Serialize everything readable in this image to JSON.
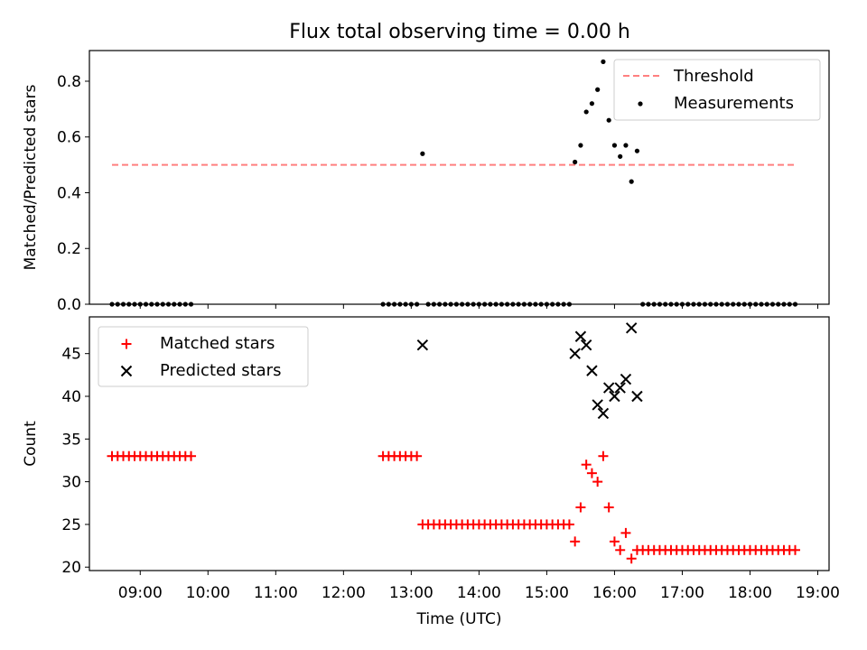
{
  "figure_title": "Flux total observing time = 0.00 h",
  "colors": {
    "threshold": "#ff7f7f",
    "measurements": "#000000",
    "matched": "#ff0000",
    "predicted": "#000000"
  },
  "chart_data": [
    {
      "type": "scatter",
      "title": "Flux total observing time = 0.00 h",
      "xlabel": "",
      "ylabel": "Matched/Predicted stars",
      "xlim": [
        "08:15",
        "19:10"
      ],
      "ylim": [
        0,
        0.91
      ],
      "yticks": [
        0.0,
        0.2,
        0.4,
        0.6,
        0.8
      ],
      "ytick_labels": [
        "0.0",
        "0.2",
        "0.4",
        "0.6",
        "0.8"
      ],
      "grid": false,
      "legend": "top-right",
      "series": [
        {
          "name": "Threshold",
          "style": "dashed-line",
          "x": [
            "08:35",
            "18:40"
          ],
          "y": [
            0.5,
            0.5
          ]
        },
        {
          "name": "Measurements",
          "style": "dot",
          "x": [
            "08:35",
            "08:40",
            "08:45",
            "08:50",
            "08:55",
            "09:00",
            "09:05",
            "09:10",
            "09:15",
            "09:20",
            "09:25",
            "09:30",
            "09:35",
            "09:40",
            "09:45",
            "12:35",
            "12:40",
            "12:45",
            "12:50",
            "12:55",
            "13:00",
            "13:05",
            "13:10",
            "13:15",
            "13:20",
            "13:25",
            "13:30",
            "13:35",
            "13:40",
            "13:45",
            "13:50",
            "13:55",
            "14:00",
            "14:05",
            "14:10",
            "14:15",
            "14:20",
            "14:25",
            "14:30",
            "14:35",
            "14:40",
            "14:45",
            "14:50",
            "14:55",
            "15:00",
            "15:05",
            "15:10",
            "15:15",
            "15:20",
            "15:25",
            "15:30",
            "15:35",
            "15:40",
            "15:45",
            "15:50",
            "15:55",
            "16:00",
            "16:05",
            "16:10",
            "16:15",
            "16:20",
            "16:25",
            "16:30",
            "16:35",
            "16:40",
            "16:45",
            "16:50",
            "16:55",
            "17:00",
            "17:05",
            "17:10",
            "17:15",
            "17:20",
            "17:25",
            "17:30",
            "17:35",
            "17:40",
            "17:45",
            "17:50",
            "17:55",
            "18:00",
            "18:05",
            "18:10",
            "18:15",
            "18:20",
            "18:25",
            "18:30",
            "18:35",
            "18:40"
          ],
          "y": [
            0,
            0,
            0,
            0,
            0,
            0,
            0,
            0,
            0,
            0,
            0,
            0,
            0,
            0,
            0,
            0,
            0,
            0,
            0,
            0,
            0,
            0,
            0.54,
            0,
            0,
            0,
            0,
            0,
            0,
            0,
            0,
            0,
            0,
            0,
            0,
            0,
            0,
            0,
            0,
            0,
            0,
            0,
            0,
            0,
            0,
            0,
            0,
            0,
            0,
            0.51,
            0.57,
            0.69,
            0.72,
            0.77,
            0.87,
            0.66,
            0.57,
            0.53,
            0.57,
            0.44,
            0.55,
            0,
            0,
            0,
            0,
            0,
            0,
            0,
            0,
            0,
            0,
            0,
            0,
            0,
            0,
            0,
            0,
            0,
            0,
            0,
            0,
            0,
            0,
            0,
            0,
            0,
            0,
            0,
            0
          ]
        }
      ]
    },
    {
      "type": "scatter",
      "xlabel": "Time (UTC)",
      "ylabel": "Count",
      "xlim": [
        "08:15",
        "19:10"
      ],
      "ylim": [
        19.6,
        49.3
      ],
      "yticks": [
        20,
        25,
        30,
        35,
        40,
        45
      ],
      "ytick_labels": [
        "20",
        "25",
        "30",
        "35",
        "40",
        "45"
      ],
      "xticks": [
        "09:00",
        "10:00",
        "11:00",
        "12:00",
        "13:00",
        "14:00",
        "15:00",
        "16:00",
        "17:00",
        "18:00",
        "19:00"
      ],
      "xtick_labels": [
        "09:00",
        "10:00",
        "11:00",
        "12:00",
        "13:00",
        "14:00",
        "15:00",
        "16:00",
        "17:00",
        "18:00",
        "19:00"
      ],
      "grid": false,
      "legend": "top-left",
      "series": [
        {
          "name": "Matched stars",
          "style": "plus",
          "x": [
            "08:35",
            "08:40",
            "08:45",
            "08:50",
            "08:55",
            "09:00",
            "09:05",
            "09:10",
            "09:15",
            "09:20",
            "09:25",
            "09:30",
            "09:35",
            "09:40",
            "09:45",
            "12:35",
            "12:40",
            "12:45",
            "12:50",
            "12:55",
            "13:00",
            "13:05",
            "13:10",
            "13:15",
            "13:20",
            "13:25",
            "13:30",
            "13:35",
            "13:40",
            "13:45",
            "13:50",
            "13:55",
            "14:00",
            "14:05",
            "14:10",
            "14:15",
            "14:20",
            "14:25",
            "14:30",
            "14:35",
            "14:40",
            "14:45",
            "14:50",
            "14:55",
            "15:00",
            "15:05",
            "15:10",
            "15:15",
            "15:20",
            "15:25",
            "15:30",
            "15:35",
            "15:40",
            "15:45",
            "15:50",
            "15:55",
            "16:00",
            "16:05",
            "16:10",
            "16:15",
            "16:20",
            "16:25",
            "16:30",
            "16:35",
            "16:40",
            "16:45",
            "16:50",
            "16:55",
            "17:00",
            "17:05",
            "17:10",
            "17:15",
            "17:20",
            "17:25",
            "17:30",
            "17:35",
            "17:40",
            "17:45",
            "17:50",
            "17:55",
            "18:00",
            "18:05",
            "18:10",
            "18:15",
            "18:20",
            "18:25",
            "18:30",
            "18:35",
            "18:40"
          ],
          "y": [
            33,
            33,
            33,
            33,
            33,
            33,
            33,
            33,
            33,
            33,
            33,
            33,
            33,
            33,
            33,
            33,
            33,
            33,
            33,
            33,
            33,
            33,
            25,
            25,
            25,
            25,
            25,
            25,
            25,
            25,
            25,
            25,
            25,
            25,
            25,
            25,
            25,
            25,
            25,
            25,
            25,
            25,
            25,
            25,
            25,
            25,
            25,
            25,
            25,
            23,
            27,
            32,
            31,
            30,
            33,
            27,
            23,
            22,
            24,
            21,
            22,
            22,
            22,
            22,
            22,
            22,
            22,
            22,
            22,
            22,
            22,
            22,
            22,
            22,
            22,
            22,
            22,
            22,
            22,
            22,
            22,
            22,
            22,
            22,
            22,
            22,
            22,
            22,
            22
          ]
        },
        {
          "name": "Predicted stars",
          "style": "x",
          "x": [
            "13:10",
            "15:25",
            "15:30",
            "15:35",
            "15:40",
            "15:45",
            "15:50",
            "15:55",
            "16:00",
            "16:05",
            "16:10",
            "16:15",
            "16:20"
          ],
          "y": [
            46,
            45,
            47,
            46,
            43,
            39,
            38,
            41,
            40,
            41,
            42,
            48,
            40
          ]
        }
      ]
    }
  ]
}
